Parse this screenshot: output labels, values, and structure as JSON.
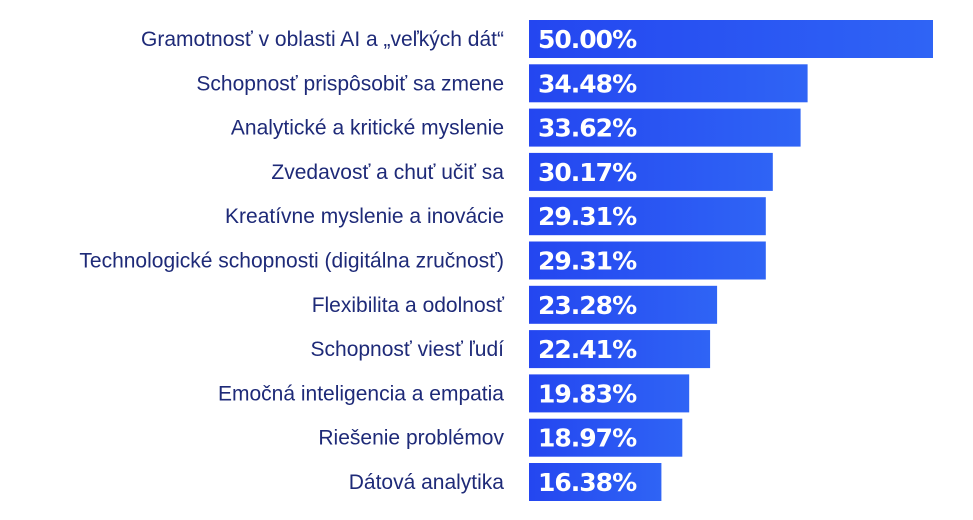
{
  "chart_data": {
    "type": "bar",
    "orientation": "horizontal",
    "title": "",
    "xlabel": "",
    "ylabel": "",
    "xlim": [
      0,
      50
    ],
    "grid": false,
    "legend": "none",
    "bar_color": "#2446f0",
    "bar_color_light": "#2f64f5",
    "label_color": "#1e2a78",
    "value_label_color": "#ffffff",
    "categories": [
      "Gramotnosť v oblasti AI a „veľkých dát“",
      "Schopnosť prispôsobiť sa zmene",
      "Analytické a kritické myslenie",
      "Zvedavosť a chuť učiť sa",
      "Kreatívne myslenie a inovácie",
      "Technologické schopnosti (digitálna zručnosť)",
      "Flexibilita a odolnosť",
      "Schopnosť viesť ľudí",
      "Emočná inteligencia a empatia",
      "Riešenie problémov",
      "Dátová analytika"
    ],
    "values": [
      50.0,
      34.48,
      33.62,
      30.17,
      29.31,
      29.31,
      23.28,
      22.41,
      19.83,
      18.97,
      16.38
    ],
    "value_labels": [
      "50.00%",
      "34.48%",
      "33.62%",
      "30.17%",
      "29.31%",
      "29.31%",
      "23.28%",
      "22.41%",
      "19.83%",
      "18.97%",
      "16.38%"
    ]
  }
}
